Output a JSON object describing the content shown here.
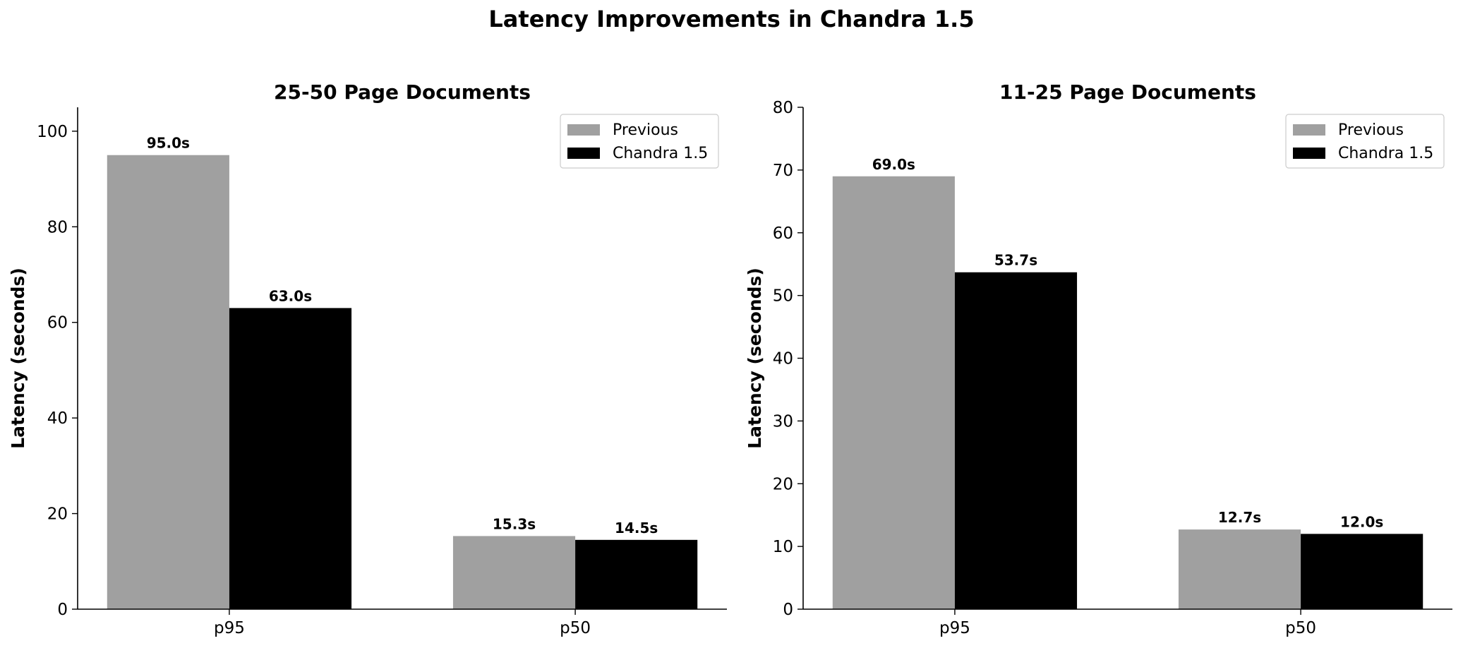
{
  "figure_title": "Latency Improvements in Chandra 1.5",
  "colors": {
    "previous": "#a0a0a0",
    "chandra": "#000000"
  },
  "chart_data": [
    {
      "type": "bar",
      "title": "25-50 Page Documents",
      "ylabel": "Latency (seconds)",
      "xlabel": "",
      "categories": [
        "p95",
        "p50"
      ],
      "ylim": [
        0,
        105
      ],
      "yticks": [
        0,
        20,
        40,
        60,
        80,
        100
      ],
      "legend_position": "top-right",
      "series": [
        {
          "name": "Previous",
          "values": [
            95.0,
            15.3
          ],
          "labels": [
            "95.0s",
            "15.3s"
          ]
        },
        {
          "name": "Chandra 1.5",
          "values": [
            63.0,
            14.5
          ],
          "labels": [
            "63.0s",
            "14.5s"
          ]
        }
      ]
    },
    {
      "type": "bar",
      "title": "11-25 Page Documents",
      "ylabel": "Latency (seconds)",
      "xlabel": "",
      "categories": [
        "p95",
        "p50"
      ],
      "ylim": [
        0,
        80
      ],
      "yticks": [
        0,
        10,
        20,
        30,
        40,
        50,
        60,
        70,
        80
      ],
      "legend_position": "top-right",
      "series": [
        {
          "name": "Previous",
          "values": [
            69.0,
            12.7
          ],
          "labels": [
            "69.0s",
            "12.7s"
          ]
        },
        {
          "name": "Chandra 1.5",
          "values": [
            53.7,
            12.0
          ],
          "labels": [
            "53.7s",
            "12.0s"
          ]
        }
      ]
    }
  ]
}
